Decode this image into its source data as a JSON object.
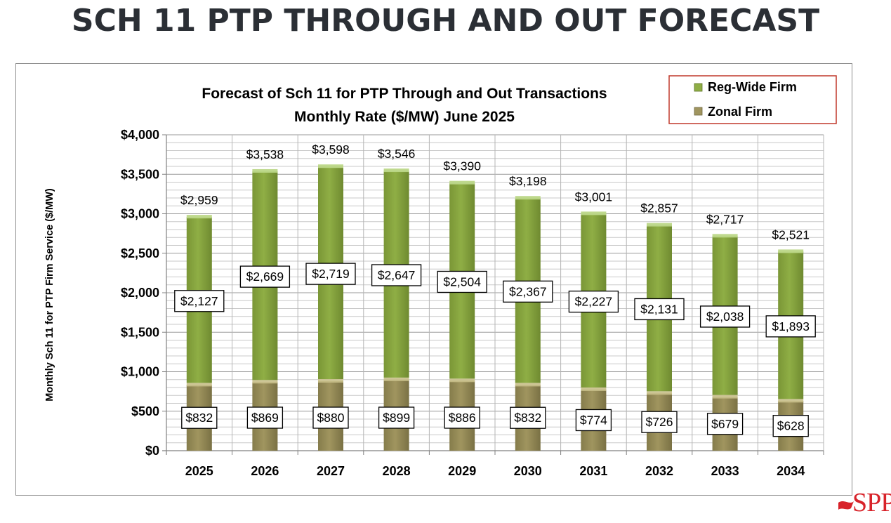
{
  "slide": {
    "title": "SCH 11 PTP THROUGH AND OUT FORECAST",
    "logo_text": "SPP"
  },
  "colors": {
    "reg_wide": "#7e9b3b",
    "reg_wide_light": "#9fbd55",
    "zonal": "#8c8352",
    "zonal_light": "#a99f6a",
    "legend_border": "#c0392b"
  },
  "chart_data": {
    "type": "bar",
    "stacked": true,
    "title": "Forecast of Sch 11 for PTP Through and Out Transactions",
    "subtitle": "Monthly Rate ($/MW) June 2025",
    "xlabel": "",
    "ylabel": "Monthly Sch 11 for PTP Firm Service ($/MW)",
    "ylim": [
      0,
      4000
    ],
    "yticks": [
      0,
      500,
      1000,
      1500,
      2000,
      2500,
      3000,
      3500,
      4000
    ],
    "ytick_labels": [
      "$0",
      "$500",
      "$1,000",
      "$1,500",
      "$2,000",
      "$2,500",
      "$3,000",
      "$3,500",
      "$4,000"
    ],
    "grid": true,
    "legend_position": "top-right",
    "categories": [
      "2025",
      "2026",
      "2027",
      "2028",
      "2029",
      "2030",
      "2031",
      "2032",
      "2033",
      "2034"
    ],
    "series": [
      {
        "name": "Zonal Firm",
        "values": [
          832,
          869,
          880,
          899,
          886,
          832,
          774,
          726,
          679,
          628
        ],
        "labels": [
          "$832",
          "$869",
          "$880",
          "$899",
          "$886",
          "$832",
          "$774",
          "$726",
          "$679",
          "$628"
        ]
      },
      {
        "name": "Reg-Wide Firm",
        "values": [
          2127,
          2669,
          2719,
          2647,
          2504,
          2367,
          2227,
          2131,
          2038,
          1893
        ],
        "labels": [
          "$2,127",
          "$2,669",
          "$2,719",
          "$2,647",
          "$2,504",
          "$2,367",
          "$2,227",
          "$2,131",
          "$2,038",
          "$1,893"
        ]
      }
    ],
    "totals": [
      2959,
      3538,
      3598,
      3546,
      3390,
      3198,
      3001,
      2857,
      2717,
      2521
    ],
    "total_labels": [
      "$2,959",
      "$3,538",
      "$3,598",
      "$3,546",
      "$3,390",
      "$3,198",
      "$3,001",
      "$2,857",
      "$2,717",
      "$2,521"
    ],
    "legend": [
      "Reg-Wide Firm",
      "Zonal Firm"
    ]
  }
}
